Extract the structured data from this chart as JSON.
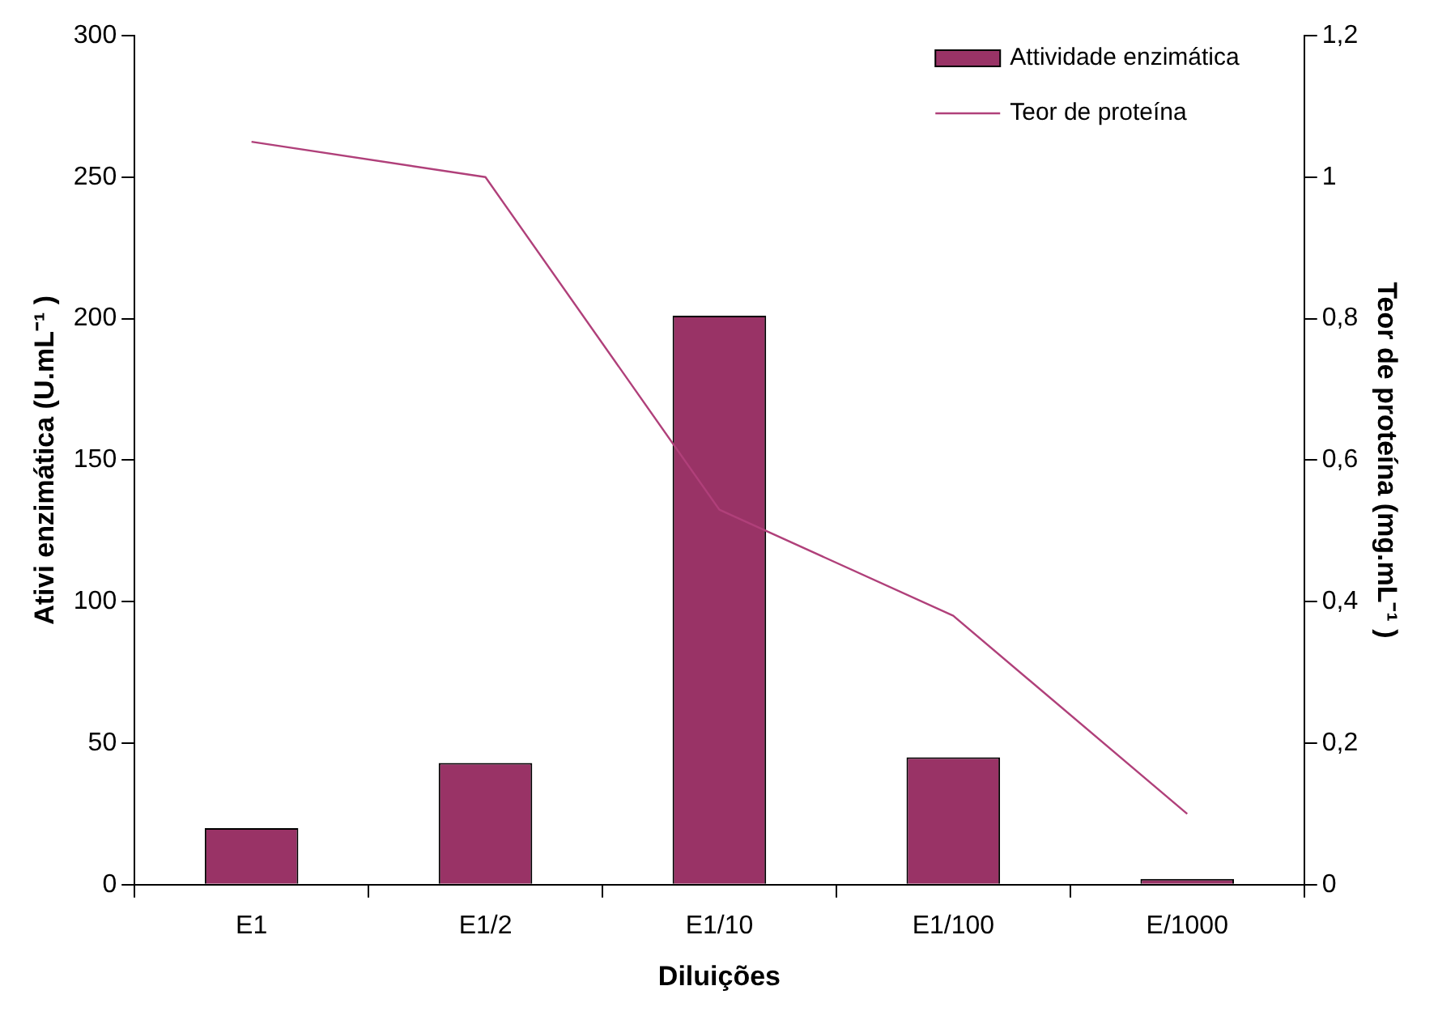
{
  "chart_data": {
    "type": "bar",
    "xlabel": "Diluições",
    "ylabel": "Ativi enzimática (U.mL⁻¹ )",
    "y2label": "Teor de proteína (mg.mL⁻¹ )",
    "categories": [
      "E1",
      "E1/2",
      "E1/10",
      "E1/100",
      "E/1000"
    ],
    "series": [
      {
        "name": "Attividade enzimática",
        "type": "bar",
        "color": "#993366",
        "values": [
          20,
          43,
          201,
          45,
          2
        ]
      },
      {
        "name": "Teor de proteína",
        "type": "line",
        "axis": "y2",
        "color": "#b0407a",
        "values": [
          1.05,
          1.0,
          0.53,
          0.38,
          0.1
        ]
      }
    ],
    "ylim": [
      0,
      300
    ],
    "yticks": [
      0,
      50,
      100,
      150,
      200,
      250,
      300
    ],
    "y2lim": [
      0,
      1.2
    ],
    "y2ticks": [
      {
        "value": 0,
        "label": "0"
      },
      {
        "value": 0.2,
        "label": "0,2"
      },
      {
        "value": 0.4,
        "label": "0,4"
      },
      {
        "value": 0.6,
        "label": "0,6"
      },
      {
        "value": 0.8,
        "label": "0,8"
      },
      {
        "value": 1,
        "label": "1"
      },
      {
        "value": 1.2,
        "label": "1,2"
      }
    ],
    "grid": false,
    "legend": "top right",
    "marker": "none",
    "line_style": "solid"
  }
}
